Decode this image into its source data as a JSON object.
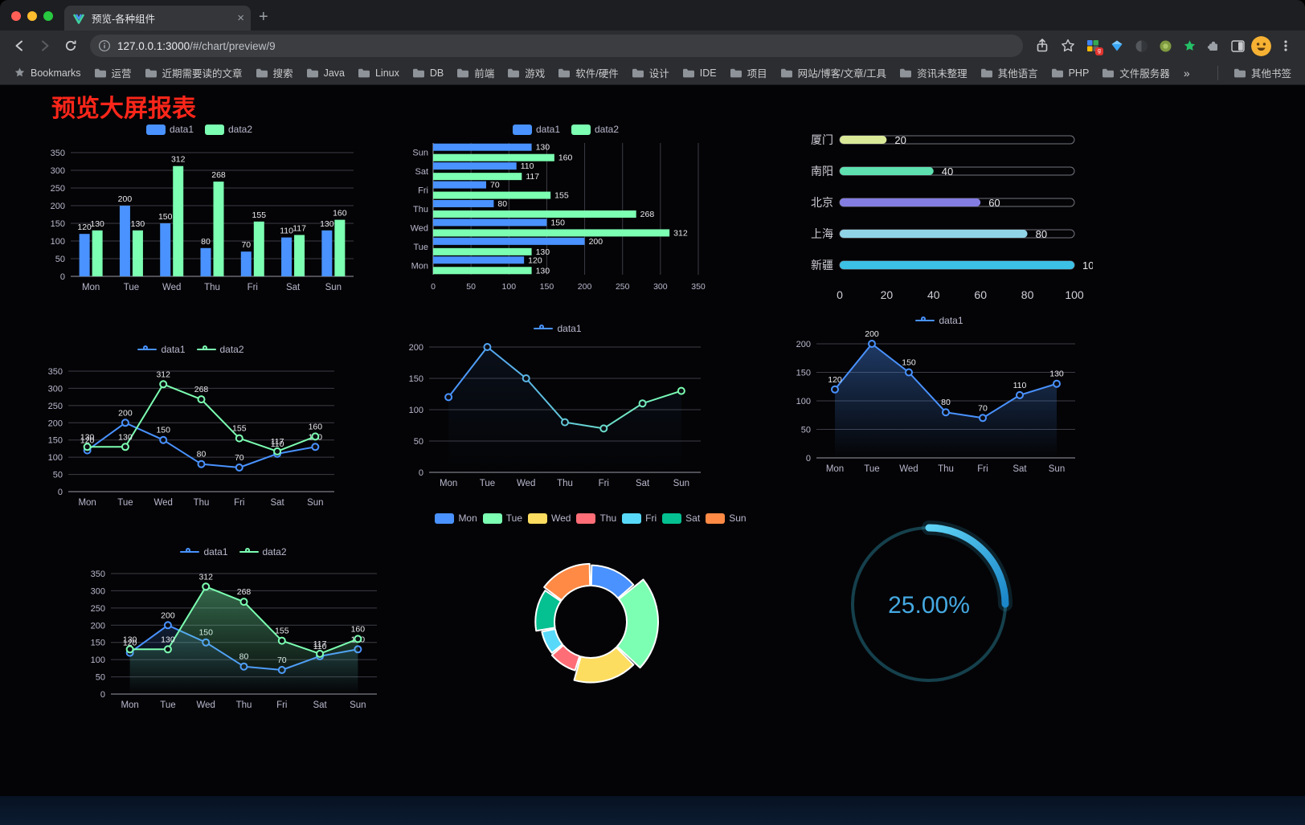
{
  "browser": {
    "tab": {
      "title": "预览-各种组件"
    },
    "url_host": "127.0.0.1:3000",
    "url_path": "/#/chart/preview/9",
    "bookmarks_label": "Bookmarks",
    "bookmarks": [
      "运营",
      "近期需要读的文章",
      "搜索",
      "Java",
      "Linux",
      "DB",
      "前端",
      "游戏",
      "软件/硬件",
      "设计",
      "IDE",
      "项目",
      "网站/博客/文章/工具",
      "资讯未整理",
      "其他语言",
      "PHP",
      "文件服务器"
    ],
    "bookmarks_overflow": "»",
    "other_bookmarks": "其他书签"
  },
  "page": {
    "title": "预览大屏报表",
    "title_color": "#fb261a"
  },
  "chart_data": [
    {
      "id": "grouped-bar",
      "type": "bar",
      "categories": [
        "Mon",
        "Tue",
        "Wed",
        "Thu",
        "Fri",
        "Sat",
        "Sun"
      ],
      "series": [
        {
          "name": "data1",
          "color": "#4992ff",
          "values": [
            120,
            200,
            150,
            80,
            70,
            110,
            130
          ]
        },
        {
          "name": "data2",
          "color": "#7cffb2",
          "values": [
            130,
            130,
            312,
            268,
            155,
            117,
            160
          ]
        }
      ],
      "ylim": [
        0,
        350
      ],
      "ytick": 50,
      "value_labels": true,
      "legend_position": "top",
      "grid": true
    },
    {
      "id": "grouped-horizontal-bar",
      "type": "bar",
      "orientation": "horizontal",
      "categories": [
        "Mon",
        "Tue",
        "Wed",
        "Thu",
        "Fri",
        "Sat",
        "Sun"
      ],
      "series": [
        {
          "name": "data1",
          "color": "#4992ff",
          "values": [
            120,
            200,
            150,
            80,
            70,
            110,
            130
          ]
        },
        {
          "name": "data2",
          "color": "#7cffb2",
          "values": [
            130,
            130,
            312,
            268,
            155,
            117,
            160
          ]
        }
      ],
      "xlim": [
        0,
        350
      ],
      "xtick": 50,
      "value_labels": true,
      "legend_position": "top",
      "grid": true
    },
    {
      "id": "capsule-progress-bars",
      "type": "bar",
      "variant": "capsule",
      "rows": [
        {
          "label": "厦门",
          "value": 20,
          "color": "#d9e998"
        },
        {
          "label": "南阳",
          "value": 40,
          "color": "#5fe0b0"
        },
        {
          "label": "北京",
          "value": 60,
          "color": "#837de2"
        },
        {
          "label": "上海",
          "value": 80,
          "color": "#8fd4e6"
        },
        {
          "label": "新疆",
          "value": 100,
          "color": "#3cc0e6"
        }
      ],
      "xlim": [
        0,
        100
      ],
      "xticks": [
        0,
        20,
        40,
        60,
        80,
        100
      ]
    },
    {
      "id": "multi-line",
      "type": "line",
      "categories": [
        "Mon",
        "Tue",
        "Wed",
        "Thu",
        "Fri",
        "Sat",
        "Sun"
      ],
      "series": [
        {
          "name": "data1",
          "color": "#4992ff",
          "values": [
            120,
            200,
            150,
            80,
            70,
            110,
            130
          ]
        },
        {
          "name": "data2",
          "color": "#7cffb2",
          "values": [
            130,
            130,
            312,
            268,
            155,
            117,
            160
          ]
        }
      ],
      "ylim": [
        0,
        350
      ],
      "ytick": 50,
      "value_labels": true,
      "legend_position": "top",
      "grid": true
    },
    {
      "id": "gradient-line",
      "type": "line",
      "variant": "gradient-stroke",
      "categories": [
        "Mon",
        "Tue",
        "Wed",
        "Thu",
        "Fri",
        "Sat",
        "Sun"
      ],
      "series": [
        {
          "name": "data1",
          "color_start": "#4992ff",
          "color_end": "#7cffb2",
          "values": [
            120,
            200,
            150,
            80,
            70,
            110,
            130
          ],
          "area_opacity": 0.08
        }
      ],
      "ylim": [
        0,
        200
      ],
      "ytick": 50,
      "value_labels": false,
      "legend_position": "top",
      "grid": true
    },
    {
      "id": "area-line",
      "type": "area",
      "categories": [
        "Mon",
        "Tue",
        "Wed",
        "Thu",
        "Fri",
        "Sat",
        "Sun"
      ],
      "series": [
        {
          "name": "data1",
          "color": "#4992ff",
          "values": [
            120,
            200,
            150,
            80,
            70,
            110,
            130
          ],
          "area_opacity": 0.38
        }
      ],
      "ylim": [
        0,
        200
      ],
      "ytick": 50,
      "value_labels": true,
      "legend_position": "top",
      "grid": true
    },
    {
      "id": "multi-area-line",
      "type": "area",
      "categories": [
        "Mon",
        "Tue",
        "Wed",
        "Thu",
        "Fri",
        "Sat",
        "Sun"
      ],
      "series": [
        {
          "name": "data1",
          "color": "#4992ff",
          "values": [
            120,
            200,
            150,
            80,
            70,
            110,
            130
          ],
          "area_opacity": 0.18
        },
        {
          "name": "data2",
          "color": "#7cffb2",
          "values": [
            130,
            130,
            312,
            268,
            155,
            117,
            160
          ],
          "area_opacity": 0.4
        }
      ],
      "ylim": [
        0,
        350
      ],
      "ytick": 50,
      "value_labels": true,
      "legend_position": "top",
      "grid": true
    },
    {
      "id": "rose-donut",
      "type": "pie",
      "variant": "rose-donut-rounded",
      "labels": [
        "Mon",
        "Tue",
        "Wed",
        "Thu",
        "Fri",
        "Sat",
        "Sun"
      ],
      "values": [
        120,
        200,
        150,
        80,
        70,
        110,
        130
      ],
      "colors": [
        "#4992ff",
        "#7cffb2",
        "#fddd60",
        "#ff6e76",
        "#58d9f9",
        "#05c091",
        "#ff8a45"
      ],
      "legend_position": "top"
    },
    {
      "id": "progress-ring",
      "type": "ring",
      "label": "25.00%",
      "percent": 25,
      "color": "#38b8e8",
      "color_end": "#1b86c8",
      "track_color": "#15404c",
      "text_color": "#45a9e2"
    }
  ]
}
